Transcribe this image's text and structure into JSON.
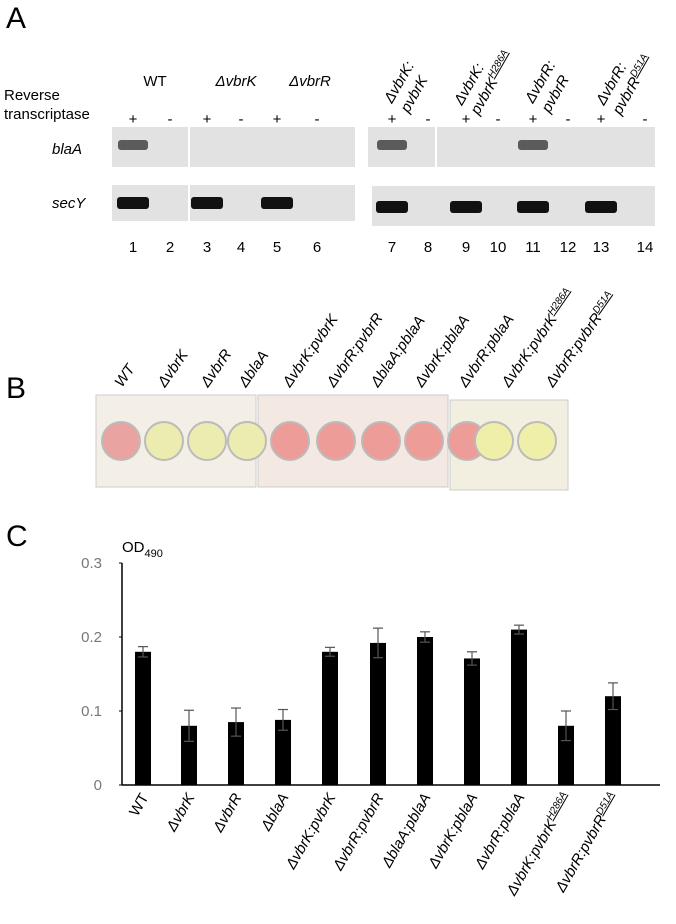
{
  "panel_a": {
    "letter": "A",
    "rt_label": [
      "Reverse",
      "transcriptase"
    ],
    "groups": [
      {
        "label": "WT"
      },
      {
        "label": "ΔvbrK"
      },
      {
        "label": "ΔvbrR"
      },
      {
        "label": "ΔvbrK:",
        "label2": "pvbrK"
      },
      {
        "label": "ΔvbrK:",
        "label2": "pvbrK",
        "sup": "H286A"
      },
      {
        "label": "ΔvbrR:",
        "label2": "pvbrR"
      },
      {
        "label": "ΔvbrR:",
        "label2": "pvbrR",
        "sup": "D51A"
      }
    ],
    "rt_signs": [
      "+",
      "-",
      "+",
      "-",
      "+",
      "-",
      "+",
      "-",
      "+",
      "-",
      "+",
      "-",
      "+",
      "-"
    ],
    "rows": [
      "blaA",
      "secY"
    ],
    "lanes": [
      1,
      2,
      3,
      4,
      5,
      6,
      7,
      8,
      9,
      10,
      11,
      12,
      13,
      14
    ]
  },
  "panel_b": {
    "letter": "B",
    "strains": [
      {
        "label": "WT",
        "color": "#e9a3a0"
      },
      {
        "label": "ΔvbrK",
        "color": "#ecebb0"
      },
      {
        "label": "ΔvbrR",
        "color": "#ecebb0"
      },
      {
        "label": "ΔblaA",
        "color": "#ecebb0"
      },
      {
        "label": "ΔvbrK:pvbrK",
        "color": "#ee9c98"
      },
      {
        "label": "ΔvbrR:pvbrR",
        "color": "#ee9c98"
      },
      {
        "label": "ΔblaA:pblaA",
        "color": "#ee9c98"
      },
      {
        "label": "ΔvbrK:pblaA",
        "color": "#ee9c98"
      },
      {
        "label": "ΔvbrR:pblaA",
        "color": "#ee9c98"
      },
      {
        "label": "ΔvbrK:pvbrK",
        "sup": "H286A",
        "color": "#f0efaa"
      },
      {
        "label": "ΔvbrR:pvbrR",
        "sup": "D51A",
        "color": "#f0efaa"
      }
    ]
  },
  "chart_data": {
    "type": "bar",
    "panel_letter": "C",
    "y_label": "OD",
    "y_label_sub": "490",
    "categories": [
      "WT",
      "ΔvbrK",
      "ΔvbrR",
      "ΔblaA",
      "ΔvbrK:pvbrK",
      "ΔvbrR:pvbrR",
      "ΔblaA:pblaA",
      "ΔvbrK:pblaA",
      "ΔvbrR:pblaA",
      "ΔvbrK:pvbrK",
      "ΔvbrR:pvbrR"
    ],
    "category_superscripts": [
      null,
      null,
      null,
      null,
      null,
      null,
      null,
      null,
      null,
      "H286A",
      "D51A"
    ],
    "values": [
      0.18,
      0.08,
      0.085,
      0.088,
      0.18,
      0.192,
      0.2,
      0.171,
      0.21,
      0.08,
      0.12
    ],
    "errors": [
      0.007,
      0.021,
      0.019,
      0.014,
      0.006,
      0.02,
      0.007,
      0.009,
      0.006,
      0.02,
      0.018
    ],
    "color": "#000000",
    "ylim": [
      0,
      0.3
    ],
    "yticks": [
      0,
      0.1,
      0.2,
      0.3
    ]
  }
}
